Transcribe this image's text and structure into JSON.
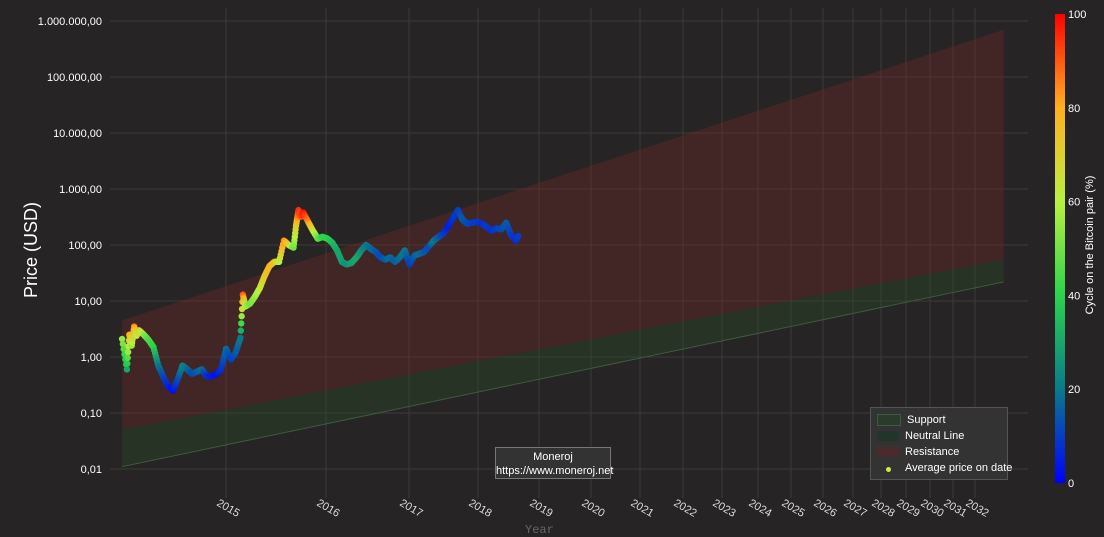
{
  "chart_data": {
    "type": "scatter",
    "ylabel": "Price (USD)",
    "xlabel": "Year",
    "y_scale": "log",
    "ylim": [
      0.01,
      1000000
    ],
    "xlim": [
      2014.0,
      2033.0
    ],
    "yticks": [
      "0,01",
      "0,10",
      "1,00",
      "10,00",
      "100,00",
      "1.000,00",
      "10.000,00",
      "100.000,00",
      "1.000.000,00"
    ],
    "xticks": [
      "2015",
      "2016",
      "2017",
      "2018",
      "2019",
      "2020",
      "2021",
      "2022",
      "2023",
      "2024",
      "2025",
      "2026",
      "2027",
      "2028",
      "2029",
      "2030",
      "2031",
      "2032"
    ],
    "bands": {
      "start_year": 2014.25,
      "end_year": 2032.5,
      "support": [
        0.011,
        22
      ],
      "neutral_line": [
        0.05,
        55
      ],
      "resistance": [
        4.5,
        700000
      ]
    },
    "series": [
      {
        "name": "Average price on date",
        "points": [
          [
            2014.25,
            2.1,
            55
          ],
          [
            2014.35,
            0.6,
            30
          ],
          [
            2014.4,
            2.5,
            80
          ],
          [
            2014.45,
            1.6,
            55
          ],
          [
            2014.5,
            3.5,
            85
          ],
          [
            2014.55,
            2.4,
            60
          ],
          [
            2014.6,
            3.0,
            70
          ],
          [
            2014.7,
            2.5,
            55
          ],
          [
            2014.8,
            2.0,
            45
          ],
          [
            2014.9,
            1.5,
            40
          ],
          [
            2015.0,
            0.7,
            20
          ],
          [
            2015.1,
            0.45,
            12
          ],
          [
            2015.2,
            0.3,
            6
          ],
          [
            2015.3,
            0.25,
            3
          ],
          [
            2015.4,
            0.4,
            12
          ],
          [
            2015.5,
            0.7,
            22
          ],
          [
            2015.6,
            0.6,
            18
          ],
          [
            2015.7,
            0.5,
            12
          ],
          [
            2015.8,
            0.55,
            15
          ],
          [
            2015.9,
            0.6,
            18
          ],
          [
            2016.0,
            0.45,
            8
          ],
          [
            2016.1,
            0.45,
            5
          ],
          [
            2016.2,
            0.5,
            3
          ],
          [
            2016.3,
            0.6,
            8
          ],
          [
            2016.4,
            1.4,
            18
          ],
          [
            2016.5,
            0.9,
            10
          ],
          [
            2016.6,
            1.2,
            14
          ],
          [
            2016.7,
            2.2,
            20
          ],
          [
            2016.75,
            13,
            90
          ],
          [
            2016.8,
            8,
            60
          ],
          [
            2016.9,
            9,
            50
          ],
          [
            2017.0,
            12,
            55
          ],
          [
            2017.1,
            17,
            62
          ],
          [
            2017.2,
            28,
            72
          ],
          [
            2017.3,
            42,
            78
          ],
          [
            2017.4,
            50,
            75
          ],
          [
            2017.5,
            50,
            60
          ],
          [
            2017.6,
            120,
            85
          ],
          [
            2017.7,
            100,
            70
          ],
          [
            2017.8,
            90,
            50
          ],
          [
            2017.85,
            220,
            70
          ],
          [
            2017.9,
            420,
            95
          ],
          [
            2017.95,
            320,
            90
          ],
          [
            2018.0,
            380,
            98
          ],
          [
            2018.1,
            260,
            85
          ],
          [
            2018.2,
            180,
            65
          ],
          [
            2018.3,
            130,
            50
          ],
          [
            2018.4,
            140,
            40
          ],
          [
            2018.5,
            130,
            40
          ],
          [
            2018.6,
            110,
            35
          ],
          [
            2018.7,
            80,
            30
          ],
          [
            2018.8,
            50,
            28
          ],
          [
            2018.9,
            45,
            25
          ],
          [
            2019.0,
            48,
            28
          ],
          [
            2019.1,
            60,
            30
          ],
          [
            2019.2,
            80,
            25
          ],
          [
            2019.3,
            100,
            20
          ],
          [
            2019.4,
            85,
            18
          ],
          [
            2019.5,
            75,
            15
          ],
          [
            2019.6,
            60,
            12
          ],
          [
            2019.7,
            55,
            15
          ],
          [
            2019.8,
            60,
            18
          ],
          [
            2019.9,
            50,
            15
          ],
          [
            2020.0,
            60,
            18
          ],
          [
            2020.1,
            80,
            20
          ],
          [
            2020.2,
            45,
            10
          ],
          [
            2020.3,
            65,
            15
          ],
          [
            2020.4,
            70,
            18
          ],
          [
            2020.5,
            75,
            15
          ],
          [
            2020.6,
            95,
            12
          ],
          [
            2020.7,
            120,
            20
          ],
          [
            2020.8,
            140,
            15
          ],
          [
            2020.9,
            160,
            10
          ],
          [
            2021.0,
            220,
            5
          ],
          [
            2021.1,
            300,
            8
          ],
          [
            2021.2,
            420,
            10
          ],
          [
            2021.3,
            280,
            15
          ],
          [
            2021.4,
            240,
            12
          ],
          [
            2021.5,
            250,
            10
          ],
          [
            2021.6,
            260,
            10
          ],
          [
            2021.7,
            240,
            8
          ],
          [
            2021.8,
            210,
            10
          ],
          [
            2021.9,
            180,
            8
          ],
          [
            2022.0,
            200,
            10
          ],
          [
            2022.1,
            190,
            12
          ],
          [
            2022.2,
            250,
            15
          ],
          [
            2022.3,
            150,
            10
          ],
          [
            2022.4,
            120,
            8
          ],
          [
            2022.45,
            145,
            10
          ]
        ]
      }
    ],
    "colorbar": {
      "title": "Cycle on the Bitcoin pair (%)",
      "ticks": [
        "0",
        "20",
        "40",
        "60",
        "80",
        "100"
      ],
      "range": [
        0,
        100
      ],
      "colors": [
        "#0000ff",
        "#0a7a8a",
        "#2ad44a",
        "#b8f040",
        "#ffb020",
        "#ff0000"
      ]
    },
    "legend": {
      "placement": "bottom-right",
      "items": [
        {
          "label": "Support",
          "color": "#2b3b2b"
        },
        {
          "label": "Neutral Line",
          "color": "#22352a"
        },
        {
          "label": "Resistance",
          "color": "#4a2a2a"
        },
        {
          "label": "Average price on date",
          "color": "#c8f040"
        }
      ]
    },
    "grid": true
  },
  "annotation": {
    "line1": "Moneroj",
    "line2": "https://www.moneroj.net"
  }
}
